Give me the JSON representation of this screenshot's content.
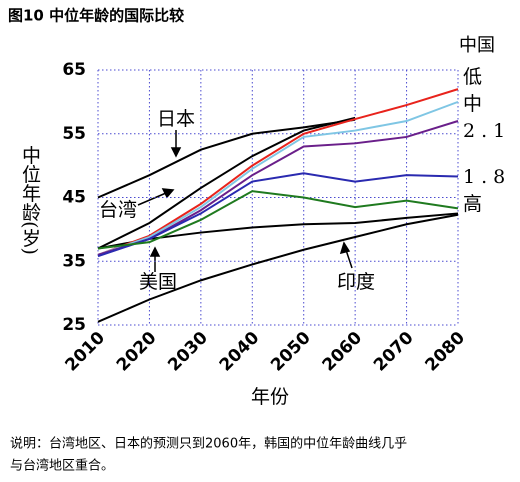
{
  "chart_data": {
    "type": "line",
    "title": "图10 中位年龄的国际比较",
    "ylabel": "中位年龄(岁)",
    "xlabel": "年份",
    "china_label": "中国",
    "note": [
      "说明：台湾地区、日本的预测只到2060年，韩国的中位年龄曲线几乎",
      "与台湾地区重合。"
    ],
    "x": [
      2010,
      2020,
      2030,
      2040,
      2050,
      2060,
      2070,
      2080
    ],
    "xlim": [
      2010,
      2080
    ],
    "xticks": [
      2010,
      2020,
      2030,
      2040,
      2050,
      2060,
      2070,
      2080
    ],
    "ylim": [
      25,
      65
    ],
    "yticks": [
      25,
      35,
      45,
      55,
      65
    ],
    "grid": true,
    "series": [
      {
        "name": "日本",
        "color": "#000000",
        "values": [
          45,
          48.5,
          52.5,
          55,
          56,
          57.2,
          null,
          null
        ]
      },
      {
        "name": "台湾",
        "color": "#000000",
        "values": [
          37,
          41,
          46.5,
          51.5,
          55.5,
          57.5,
          null,
          null
        ]
      },
      {
        "name": "美国",
        "color": "#000000",
        "values": [
          37,
          38.5,
          39.5,
          40.3,
          40.8,
          41,
          41.8,
          42.5
        ]
      },
      {
        "name": "印度",
        "color": "#000000",
        "values": [
          25.5,
          29,
          32,
          34.5,
          36.8,
          38.8,
          40.8,
          42.3
        ]
      },
      {
        "name": "低",
        "color": "#e8231c",
        "values": [
          36,
          39,
          44,
          50,
          55,
          57.3,
          59.5,
          62
        ]
      },
      {
        "name": "中",
        "color": "#7fc6e4",
        "values": [
          36,
          38.8,
          43.5,
          49.5,
          54.5,
          55.5,
          57,
          60
        ]
      },
      {
        "name": "2.1",
        "color": "#6a1f8a",
        "values": [
          36,
          38.5,
          43,
          48.5,
          53,
          53.5,
          54.5,
          57
        ]
      },
      {
        "name": "1.8",
        "color": "#2a2ab0",
        "values": [
          35.8,
          38.5,
          42.5,
          47.5,
          48.8,
          47.5,
          48.5,
          48.3
        ]
      },
      {
        "name": "高",
        "color": "#1f7a1f",
        "values": [
          37,
          38,
          41.5,
          46,
          45,
          43.5,
          44.5,
          43.3
        ]
      }
    ]
  }
}
